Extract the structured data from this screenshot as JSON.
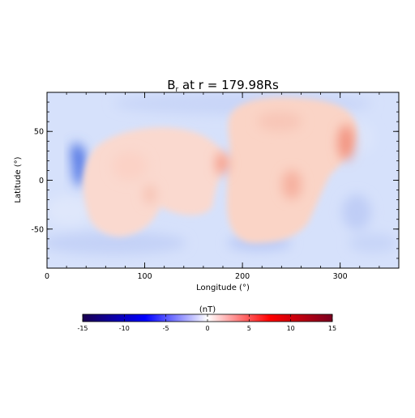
{
  "chart_data": {
    "type": "heatmap",
    "title_prefix": "B",
    "title_subscript": "r",
    "title_suffix": " at r = 179.98Rs",
    "xlabel": "Longitude (°)",
    "ylabel": "Latitude (°)",
    "xlim": [
      0,
      360
    ],
    "ylim": [
      -90,
      90
    ],
    "x_ticks": [
      "0",
      "100",
      "200",
      "300"
    ],
    "y_ticks": [
      "-50",
      "0",
      "50"
    ],
    "colorbar": {
      "label": "(nT)",
      "range": [
        -15,
        15
      ],
      "ticks": [
        "-15",
        "-10",
        "-5",
        "0",
        "5",
        "10",
        "15"
      ],
      "colors": [
        "#1a0050",
        "#0000ff",
        "#ffffff",
        "#ff0000",
        "#7a0020"
      ]
    },
    "background_value_nT": -1.5,
    "regions": [
      {
        "name": "positive lobe west",
        "lon_range": [
          35,
          185
        ],
        "lat_range": [
          -58,
          55
        ],
        "value_nT": 2.5,
        "peak_nT": 4,
        "peak_lon": 180,
        "peak_lat": 20
      },
      {
        "name": "positive lobe east",
        "lon_range": [
          182,
          320
        ],
        "lat_range": [
          -62,
          85
        ],
        "value_nT": 3,
        "peak_nT": 6,
        "peak_lon": 305,
        "peak_lat": 40
      },
      {
        "name": "negative patch",
        "lon_range": [
          25,
          45
        ],
        "lat_range": [
          -20,
          30
        ],
        "value_nT": -6
      }
    ]
  }
}
